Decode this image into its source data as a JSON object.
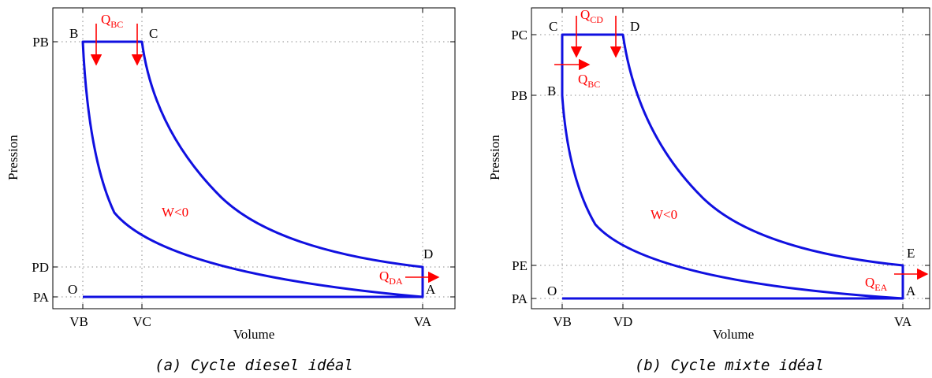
{
  "figures": [
    {
      "caption": "(a) Cycle diesel idéal",
      "xlabel": "Volume",
      "ylabel": "Pression",
      "xticks": [
        "VB",
        "VC",
        "VA"
      ],
      "yticks": [
        "PB",
        "PD",
        "PA"
      ],
      "points": [
        "B",
        "C",
        "D",
        "A",
        "O"
      ],
      "work_label": "W<0",
      "heats": [
        {
          "base": "Q",
          "sub": "BC"
        },
        {
          "base": "Q",
          "sub": "DA"
        }
      ]
    },
    {
      "caption": "(b) Cycle mixte idéal",
      "xlabel": "Volume",
      "ylabel": "Pression",
      "xticks": [
        "VB",
        "VD",
        "VA"
      ],
      "yticks": [
        "PC",
        "PB",
        "PE",
        "PA"
      ],
      "points": [
        "C",
        "D",
        "B",
        "E",
        "A",
        "O"
      ],
      "work_label": "W<0",
      "heats": [
        {
          "base": "Q",
          "sub": "CD"
        },
        {
          "base": "Q",
          "sub": "BC"
        },
        {
          "base": "Q",
          "sub": "EA"
        }
      ]
    }
  ],
  "colors": {
    "curve": "#1010e0",
    "heat": "#ff0000"
  }
}
